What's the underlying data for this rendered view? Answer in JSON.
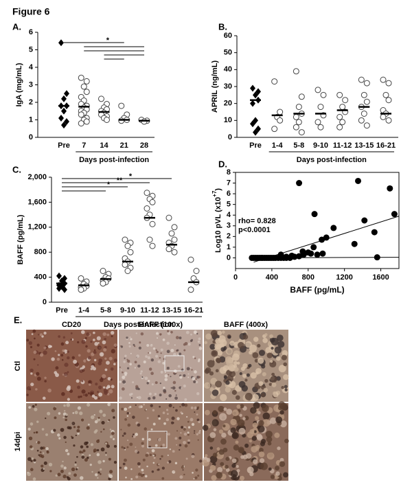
{
  "figure_title": "Figure 6",
  "chart_data": [
    {
      "type": "dot",
      "panel": "A.",
      "ylabel": "IgA (mg/mL)",
      "xlabel": "Days post-infection",
      "categories": [
        "Pre",
        "7",
        "14",
        "21",
        "28"
      ],
      "markers": [
        "diamond",
        "circle",
        "circle",
        "circle",
        "circle"
      ],
      "points": [
        [
          5.4,
          2.5,
          2.2,
          1.8,
          1.8,
          1.5,
          1.1,
          0.9,
          0.7
        ],
        [
          3.4,
          3.2,
          2.9,
          2.6,
          2.3,
          2.1,
          1.9,
          1.8,
          1.7,
          1.6,
          1.5,
          1.4,
          1.3,
          1.1,
          1.0,
          0.9,
          0.8
        ],
        [
          2.2,
          1.9,
          1.7,
          1.6,
          1.5,
          1.4,
          1.3,
          1.2,
          1.1,
          1.0
        ],
        [
          1.8,
          1.3,
          1.1,
          1.0,
          0.95
        ],
        [
          1.0,
          0.95,
          0.9
        ]
      ],
      "medians": [
        1.8,
        1.75,
        1.45,
        1.0,
        0.95
      ],
      "ylim": [
        0,
        6
      ],
      "yticks": [
        0,
        1,
        2,
        3,
        4,
        5,
        6
      ],
      "significance": [
        {
          "from": "Pre",
          "to": "21",
          "label": "*"
        },
        {
          "from": "7",
          "to": "28"
        },
        {
          "from": "7",
          "to": "28"
        },
        {
          "from": "14",
          "to": "28"
        },
        {
          "from": "14",
          "to": "21"
        }
      ]
    },
    {
      "type": "dot",
      "panel": "B.",
      "ylabel": "APRIL (ng/mL)",
      "xlabel": "Days post-infection",
      "categories": [
        "Pre",
        "1-4",
        "5-8",
        "9-10",
        "11-12",
        "13-15",
        "16-21"
      ],
      "markers": [
        "diamond",
        "circle",
        "circle",
        "circle",
        "circle",
        "circle",
        "circle"
      ],
      "points": [
        [
          29,
          27,
          25,
          22,
          20,
          10,
          8,
          5,
          3
        ],
        [
          33,
          15,
          12,
          10,
          5
        ],
        [
          39,
          24,
          18,
          14,
          12,
          9,
          6,
          3
        ],
        [
          28,
          25,
          18,
          13,
          9,
          6
        ],
        [
          25,
          22,
          18,
          15,
          12,
          9,
          6
        ],
        [
          34,
          32,
          25,
          21,
          18,
          14,
          10,
          7
        ],
        [
          34,
          32,
          25,
          22,
          16,
          14,
          12,
          10
        ]
      ],
      "medians": [
        22,
        13,
        14,
        14,
        16,
        18,
        14
      ],
      "ylim": [
        0,
        60
      ],
      "yticks": [
        0,
        10,
        20,
        30,
        40,
        50,
        60
      ]
    },
    {
      "type": "dot",
      "panel": "C.",
      "ylabel": "BAFF (pg/mL)",
      "xlabel": "Days post-infection",
      "categories": [
        "Pre",
        "1-4",
        "5-8",
        "9-10",
        "11-12",
        "13-15",
        "16-21"
      ],
      "markers": [
        "diamond",
        "circle",
        "circle",
        "circle",
        "circle",
        "circle",
        "circle"
      ],
      "points": [
        [
          420,
          380,
          340,
          300,
          270,
          250,
          220,
          200
        ],
        [
          380,
          330,
          290,
          260,
          240,
          220,
          200
        ],
        [
          500,
          450,
          400,
          380,
          350,
          320,
          300
        ],
        [
          1000,
          950,
          900,
          800,
          700,
          650,
          600,
          550,
          500
        ],
        [
          1750,
          1700,
          1650,
          1600,
          1500,
          1400,
          1350,
          1250,
          1000,
          900
        ],
        [
          1350,
          1200,
          1100,
          1000,
          950,
          900,
          850,
          800
        ],
        [
          680,
          500,
          380,
          320,
          200
        ]
      ],
      "medians": [
        300,
        270,
        370,
        650,
        1350,
        920,
        320
      ],
      "ylim": [
        0,
        2000
      ],
      "yticks": [
        0,
        400,
        800,
        {
          "value": 1200,
          "label": "1,200"
        },
        {
          "value": 1600,
          "label": "1,600"
        },
        {
          "value": 2000,
          "label": "2,000"
        }
      ],
      "significance": [
        {
          "from": "Pre",
          "to": "13-15",
          "label": "*"
        },
        {
          "from": "Pre",
          "to": "11-12",
          "label": "**"
        },
        {
          "from": "Pre",
          "to": "9-10",
          "label": "*"
        },
        {
          "from": "Pre",
          "to": "5-8"
        }
      ]
    },
    {
      "type": "scatter",
      "panel": "D.",
      "xlabel": "BAFF (pg/mL)",
      "ylabel": "Log10 pVL (x10",
      "ylabel_sup": "+7",
      "ylabel_end": ")",
      "annotations": [
        "rho= 0.828",
        "p<0.0001"
      ],
      "x": [
        700,
        1350,
        1700,
        870,
        1420,
        1530,
        1750,
        1080,
        950,
        1000,
        860,
        1310,
        1560,
        620,
        650,
        700,
        750,
        800,
        830,
        900,
        960,
        500,
        560,
        740,
        180,
        200,
        220,
        240,
        260,
        280,
        300,
        320,
        340,
        360,
        380,
        400,
        420,
        440,
        470,
        500,
        530,
        560,
        600
      ],
      "y": [
        7,
        7.2,
        6.5,
        4.1,
        3.5,
        2.4,
        4.1,
        2.8,
        1.7,
        1.9,
        1.0,
        1.3,
        0.05,
        0.2,
        0.1,
        0.15,
        0.3,
        0.5,
        0.4,
        0.3,
        0.4,
        0.3,
        0.1,
        0.6,
        0,
        0,
        0,
        0,
        0,
        0,
        0,
        0,
        0,
        0,
        0,
        0,
        0,
        0,
        0,
        0,
        0,
        0,
        0
      ],
      "fit_lines": [
        {
          "x": [
            200,
            1800
          ],
          "y": [
            -0.4,
            3.9
          ]
        },
        {
          "x": [
            200,
            1800
          ],
          "y": [
            0,
            0.05
          ]
        }
      ],
      "xlim": [
        0,
        1800
      ],
      "xticks": [
        0,
        400,
        800,
        1200,
        1600
      ],
      "ylim": [
        -1,
        8
      ],
      "yticks": [
        0,
        1,
        2,
        3,
        4,
        5,
        6,
        7,
        8
      ]
    }
  ],
  "panel_e": {
    "label": "E.",
    "columns": [
      "CD20",
      "BAFF (100x)",
      "BAFF (400x)"
    ],
    "rows": [
      "Ctl",
      "14dpi"
    ]
  }
}
